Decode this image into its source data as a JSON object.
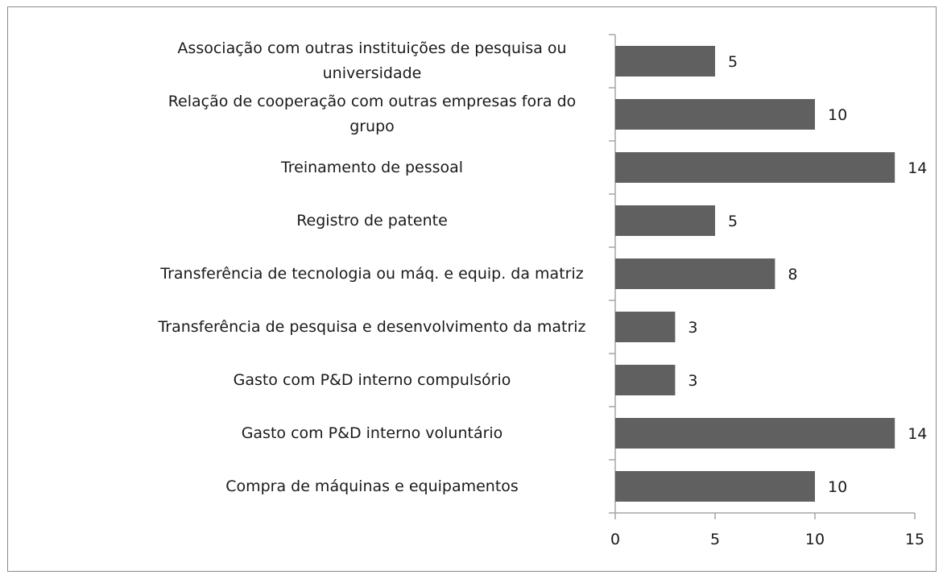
{
  "chart_data": {
    "type": "bar",
    "orientation": "horizontal",
    "categories": [
      "Associação com outras instituições de pesquisa ou universidade",
      "Relação de cooperação com outras empresas fora do grupo",
      "Treinamento de pessoal",
      "Registro de patente",
      "Transferência de tecnologia ou máq. e equip. da matriz",
      "Transferência de pesquisa e desenvolvimento da matriz",
      "Gasto com P&D interno compulsório",
      "Gasto com P&D interno voluntário",
      "Compra de máquinas e equipamentos"
    ],
    "values": [
      5,
      10,
      14,
      5,
      8,
      3,
      3,
      14,
      10
    ],
    "value_labels": [
      "5",
      "10",
      "14",
      "5",
      "8",
      "3",
      "3",
      "14",
      "10"
    ],
    "xlim": [
      0,
      15
    ],
    "x_ticks": [
      0,
      5,
      10,
      15
    ],
    "x_tick_labels": [
      "0",
      "5",
      "10",
      "15"
    ],
    "grid": false,
    "legend": "none",
    "title": "",
    "xlabel": "",
    "ylabel": "",
    "bar_color": "#606060",
    "axis_color": "#a6a6a6"
  }
}
